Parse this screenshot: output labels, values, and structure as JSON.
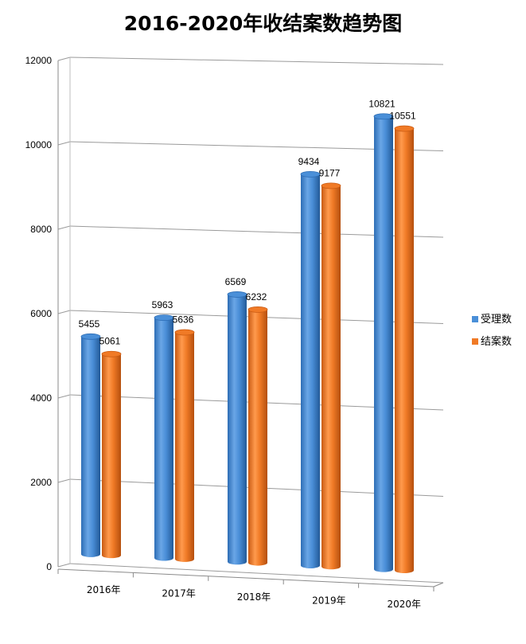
{
  "chart_data": {
    "type": "bar",
    "title": "2016-2020年收结案数趋势图",
    "categories": [
      "2016年",
      "2017年",
      "2018年",
      "2019年",
      "2020年"
    ],
    "series": [
      {
        "name": "受理数",
        "values": [
          5455,
          5963,
          6569,
          9434,
          10821
        ],
        "color": "#4a8fd8"
      },
      {
        "name": "结案数",
        "values": [
          5061,
          5636,
          6232,
          9177,
          10551
        ],
        "color": "#f07a26"
      }
    ],
    "ylim": [
      0,
      12000
    ],
    "yticks": [
      "0",
      "2000",
      "4000",
      "6000",
      "8000",
      "10000",
      "12000"
    ],
    "grid": true,
    "legend_position": "right",
    "style": "3d-cylinder"
  }
}
